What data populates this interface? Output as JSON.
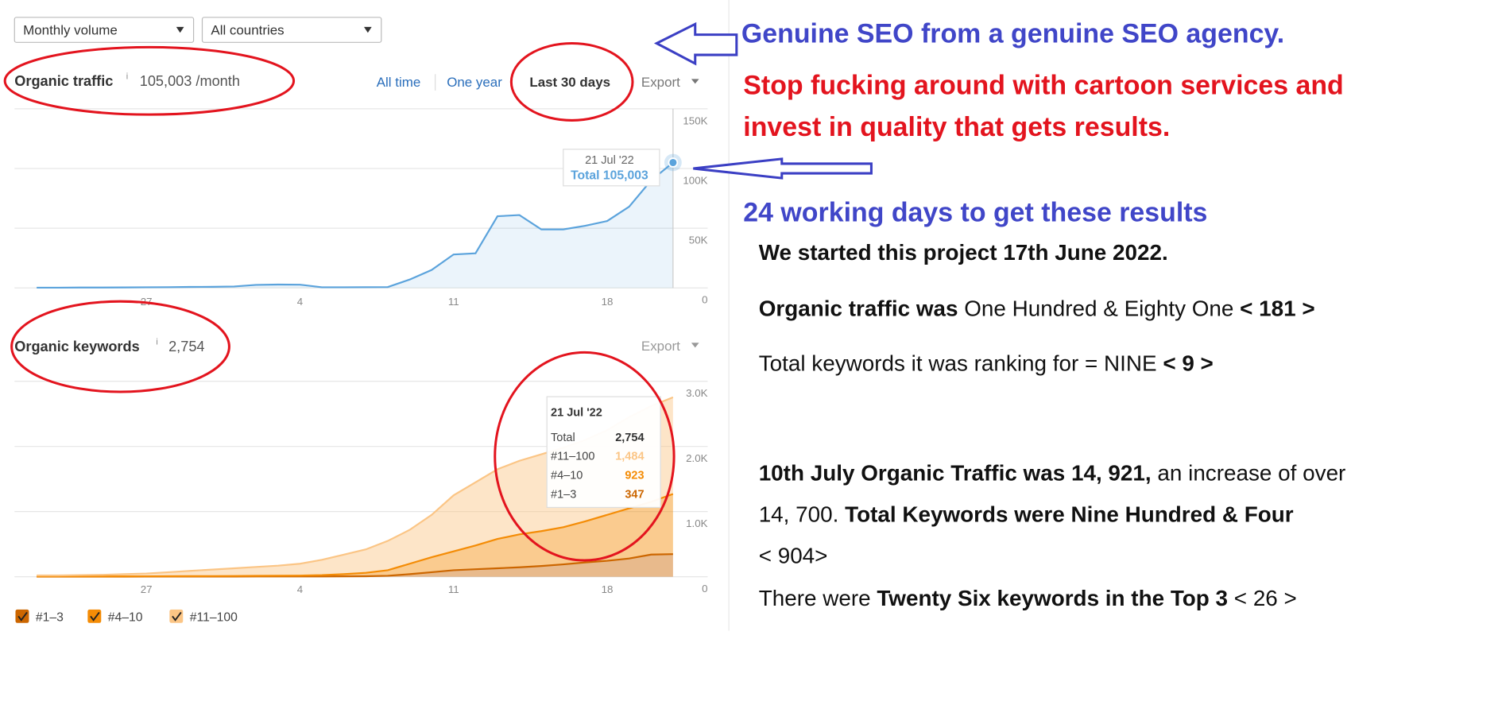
{
  "filters": [
    "Monthly volume",
    "All countries"
  ],
  "traffic_panel": {
    "info": "i",
    "range_options": [
      "All time",
      "One year",
      "Last 30 days"
    ],
    "export": "Export"
  },
  "keywords_panel": {
    "info": "i",
    "export": "Export"
  },
  "chart_data": [
    {
      "type": "area",
      "title": "Organic traffic",
      "subtitle": "105,003 /month",
      "color": "#5ba3dc",
      "categories": [
        null,
        null,
        null,
        null,
        null,
        "27",
        null,
        null,
        null,
        null,
        null,
        null,
        "4",
        null,
        null,
        null,
        null,
        null,
        null,
        "11",
        null,
        null,
        null,
        null,
        null,
        null,
        "18",
        null,
        null,
        null
      ],
      "values": [
        200,
        200,
        300,
        300,
        400,
        500,
        600,
        800,
        900,
        1200,
        2500,
        2800,
        2700,
        500,
        500,
        600,
        700,
        7000,
        15000,
        28000,
        29000,
        60000,
        61000,
        49000,
        49000,
        52000,
        56000,
        68000,
        90000,
        105003
      ],
      "ylim": [
        0,
        150000
      ],
      "yticks": [
        0,
        {
          "value": 50000,
          "label": "50K"
        },
        {
          "value": 100000,
          "label": "100K"
        },
        {
          "value": 150000,
          "label": "150K"
        }
      ],
      "grid": true,
      "tooltip": {
        "date": "21 Jul '22",
        "text": "Total 105,003"
      }
    },
    {
      "type": "stacked_area",
      "title": "Organic keywords",
      "subtitle": "2,754",
      "categories": [
        null,
        null,
        null,
        null,
        null,
        "27",
        null,
        null,
        null,
        null,
        null,
        null,
        "4",
        null,
        null,
        null,
        null,
        null,
        null,
        "11",
        null,
        null,
        null,
        null,
        null,
        null,
        "18",
        null,
        null,
        null
      ],
      "series": [
        {
          "name": "#1–3",
          "color": "#cc6600",
          "values": [
            2,
            2,
            2,
            2,
            2,
            3,
            3,
            3,
            3,
            3,
            4,
            4,
            4,
            5,
            6,
            8,
            15,
            40,
            70,
            100,
            115,
            130,
            145,
            165,
            190,
            220,
            245,
            280,
            340,
            347
          ]
        },
        {
          "name": "#4–10",
          "color": "#f48c06",
          "values": [
            3,
            3,
            3,
            3,
            4,
            4,
            5,
            6,
            7,
            9,
            10,
            12,
            14,
            20,
            34,
            52,
            85,
            160,
            230,
            290,
            365,
            450,
            505,
            535,
            570,
            630,
            705,
            770,
            810,
            923
          ]
        },
        {
          "name": "#11–100",
          "color": "#fbc585",
          "values": [
            15,
            15,
            20,
            25,
            34,
            43,
            62,
            81,
            100,
            118,
            136,
            154,
            182,
            235,
            300,
            360,
            450,
            520,
            650,
            860,
            970,
            1070,
            1130,
            1180,
            1220,
            1250,
            1300,
            1400,
            1470,
            1484
          ]
        }
      ],
      "ylim": [
        0,
        3000
      ],
      "yticks": [
        0,
        {
          "value": 1000,
          "label": "1.0K"
        },
        {
          "value": 2000,
          "label": "2.0K"
        },
        {
          "value": 3000,
          "label": "3.0K"
        }
      ],
      "grid": true,
      "tooltip": {
        "date": "21 Jul '22",
        "rows": [
          [
            "Total",
            "2,754"
          ],
          [
            "#11–100",
            "1,484"
          ],
          [
            "#4–10",
            "923"
          ],
          [
            "#1–3",
            "347"
          ]
        ]
      }
    }
  ],
  "annotation": {
    "headline": "Genuine SEO from a genuine SEO agency.",
    "callout": [
      "Stop fucking around with cartoon services and",
      "invest in quality that gets results."
    ],
    "days": "24 working days to get these results",
    "lines": [
      [
        "We started this project 17th June 2022."
      ],
      [
        "Organic traffic was",
        " One Hundred & Eighty One ",
        "< 181 >"
      ],
      [
        "Total keywords it was ranking for = NINE ",
        "< 9 >"
      ],
      [
        "10th July Organic Traffic was 14, 921,",
        " an increase of over"
      ],
      [
        "14, 700. ",
        "Total Keywords were Nine Hundred & Four"
      ],
      [
        "< 904>"
      ],
      [
        "There were ",
        "Twenty Six keywords in the Top 3",
        " < 26 >"
      ]
    ]
  }
}
